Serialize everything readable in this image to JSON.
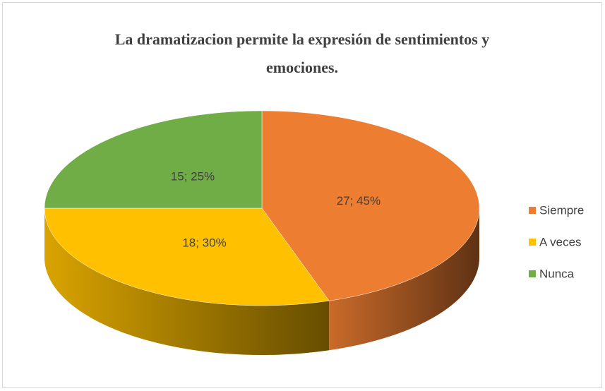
{
  "chart_data": {
    "type": "pie",
    "title": "La dramatizacion permite la expresión de sentimientos y emociones.",
    "categories": [
      "Siempre",
      "A veces",
      "Nunca"
    ],
    "values": [
      27,
      18,
      15
    ],
    "value_labels": [
      "27; 45%",
      "18; 30%",
      "15; 25%"
    ],
    "colors": [
      "#ed7d31",
      "#ffc000",
      "#70ad47"
    ],
    "legend": "right"
  }
}
